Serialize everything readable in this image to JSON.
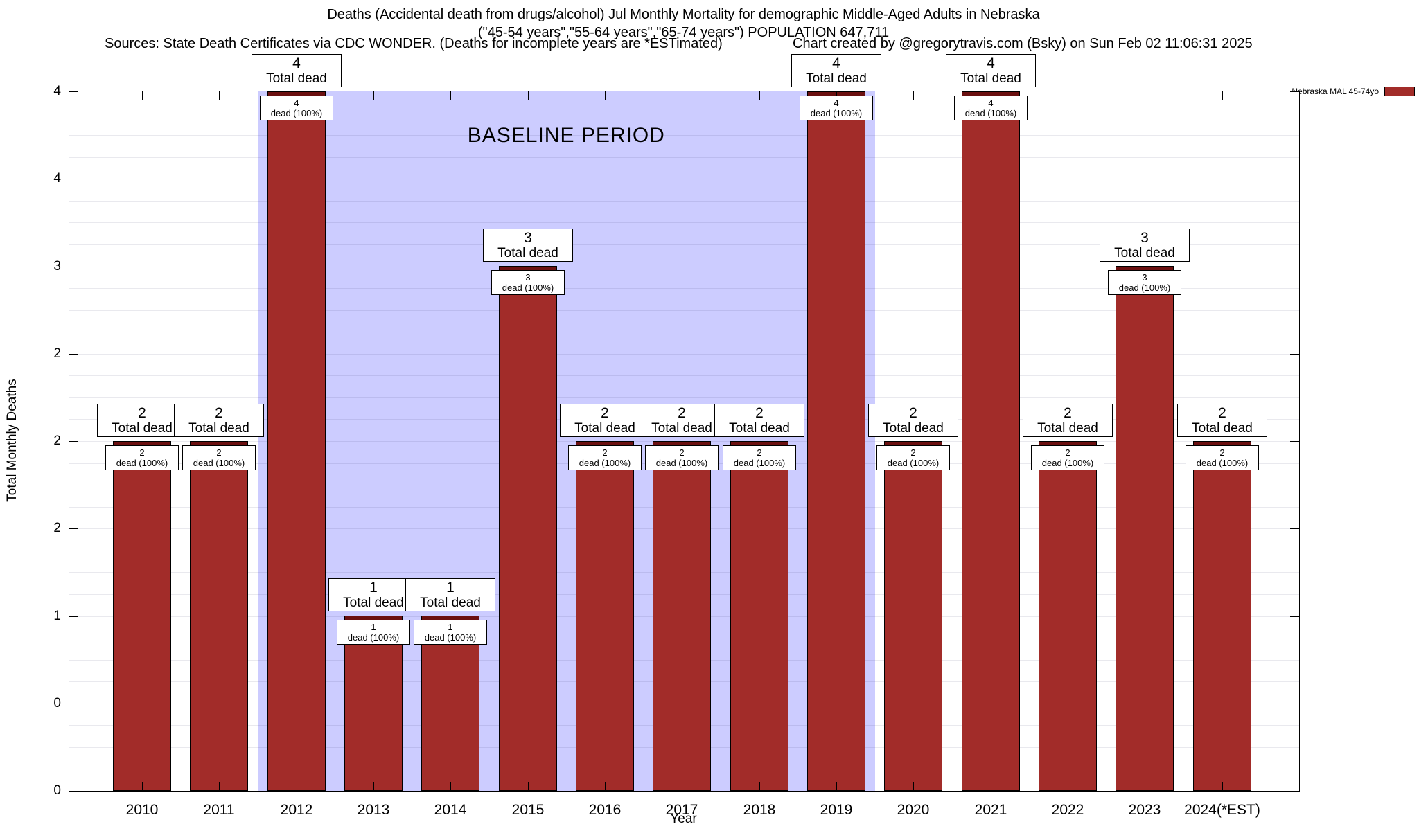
{
  "header": {
    "title_line1": "Deaths (Accidental death from drugs/alcohol) Jul Monthly Mortality for demographic Middle-Aged Adults in Nebraska",
    "title_line2": "(\"45-54 years\",\"55-64 years\",\"65-74 years\") POPULATION 647,711",
    "sources": "Sources: State Death Certificates via CDC WONDER. (Deaths for incomplete years are *ESTimated)",
    "credit": "Chart created by @gregorytravis.com (Bsky) on Sun Feb 02 11:06:31 2025"
  },
  "legend": {
    "label": "Nebraska MAL 45-74yo",
    "swatch_color": "#a22c29"
  },
  "chart_data": {
    "type": "bar",
    "title": "Deaths (Accidental death from drugs/alcohol) Jul Monthly Mortality for demographic Middle-Aged Adults in Nebraska",
    "categories": [
      "2010",
      "2011",
      "2012",
      "2013",
      "2014",
      "2015",
      "2016",
      "2017",
      "2018",
      "2019",
      "2020",
      "2021",
      "2022",
      "2023",
      "2024(*EST)"
    ],
    "values": [
      2,
      2,
      4,
      1,
      1,
      3,
      2,
      2,
      2,
      4,
      2,
      4,
      2,
      3,
      2
    ],
    "above_label": "Total dead",
    "inner_label": "dead (100%)",
    "xlabel": "Year",
    "ylabel": "Total Monthly Deaths",
    "ylim": [
      0,
      4
    ],
    "ytick_labels_top_to_bottom": [
      "4",
      "4",
      "3",
      "2",
      "2",
      "2",
      "1",
      "0",
      "0"
    ],
    "grid": "horizontal-minor",
    "legend_position": "top-right",
    "bar_color": "#a22c29",
    "bar_cap_color": "#6b1010",
    "baseline_region": {
      "label": "BASELINE PERIOD",
      "from_category": "2012",
      "to_category": "2019",
      "color": "#ccccff"
    }
  }
}
